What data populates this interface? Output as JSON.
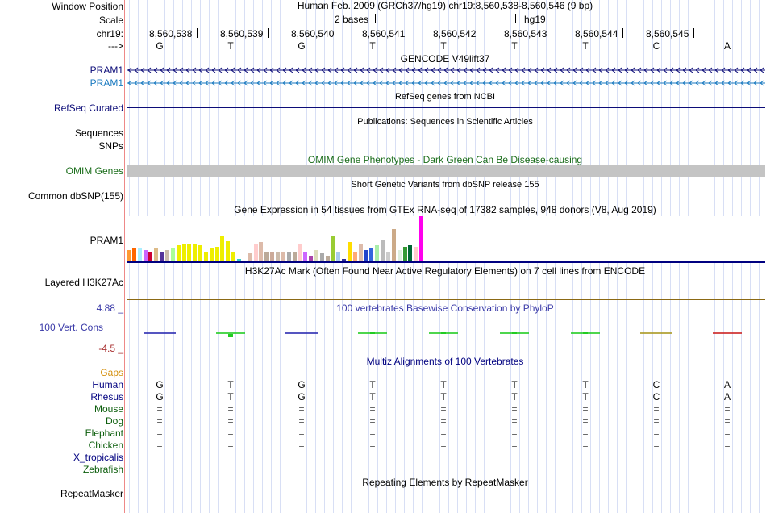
{
  "header": {
    "window_position_label": "Window Position",
    "scale_label": "Scale",
    "chr_label": "chr19:",
    "strand_label": "--->",
    "assembly_title": "Human Feb. 2009 (GRCh37/hg19)   chr19:8,560,538-8,560,546 (9 bp)",
    "scale_text": "2 bases",
    "scale_assembly": "hg19",
    "positions": [
      "8,560,538",
      "8,560,539",
      "8,560,540",
      "8,560,541",
      "8,560,542",
      "8,560,543",
      "8,560,544",
      "8,560,545"
    ],
    "bases": [
      "G",
      "T",
      "G",
      "T",
      "T",
      "T",
      "T",
      "C",
      "A"
    ]
  },
  "tracks": {
    "gencode_title": "GENCODE V49lift37",
    "gencode_gene1": "PRAM1",
    "gencode_gene2": "PRAM1",
    "refseq_label": "RefSeq Curated",
    "refseq_title": "RefSeq genes from NCBI",
    "pubs_title": "Publications: Sequences in Scientific Articles",
    "sequences_label": "Sequences",
    "snps_label": "SNPs",
    "omim_title": "OMIM Gene Phenotypes - Dark Green Can Be Disease-causing",
    "omim_label": "OMIM Genes",
    "dbsnp_title": "Short Genetic Variants from dbSNP release 155",
    "dbsnp_label": "Common dbSNP(155)",
    "gtex_title": "Gene Expression in 54 tissues from GTEx RNA-seq of 17382 samples, 948 donors (V8, Aug 2019)",
    "gtex_label": "PRAM1",
    "h3k27ac_title": "H3K27Ac Mark (Often Found Near Active Regulatory Elements) on 7 cell lines from ENCODE",
    "h3k27ac_label": "Layered H3K27Ac",
    "cons_title": "100 vertebrates Basewise Conservation by PhyloP",
    "cons_max": "4.88 _",
    "cons_min": "-4.5 _",
    "cons_label": "100 Vert. Cons",
    "multiz_title": "Multiz Alignments of 100 Vertebrates",
    "repeat_title": "Repeating Elements by RepeatMasker",
    "repeat_label": "RepeatMasker"
  },
  "alignment": {
    "gaps_label": "Gaps",
    "species": [
      {
        "name": "Human",
        "color": "#000080",
        "row": [
          "G",
          "T",
          "G",
          "T",
          "T",
          "T",
          "T",
          "C",
          "A"
        ]
      },
      {
        "name": "Rhesus",
        "color": "#000080",
        "row": [
          "G",
          "T",
          "G",
          "T",
          "T",
          "T",
          "T",
          "C",
          "A"
        ]
      },
      {
        "name": "Mouse",
        "color": "#0b5d0b",
        "row": [
          "=",
          "=",
          "=",
          "=",
          "=",
          "=",
          "=",
          "=",
          "="
        ]
      },
      {
        "name": "Dog",
        "color": "#0b5d0b",
        "row": [
          "=",
          "=",
          "=",
          "=",
          "=",
          "=",
          "=",
          "=",
          "="
        ]
      },
      {
        "name": "Elephant",
        "color": "#0b5d0b",
        "row": [
          "=",
          "=",
          "=",
          "=",
          "=",
          "=",
          "=",
          "=",
          "="
        ]
      },
      {
        "name": "Chicken",
        "color": "#0b5d0b",
        "row": [
          "=",
          "=",
          "=",
          "=",
          "=",
          "=",
          "=",
          "=",
          "="
        ]
      },
      {
        "name": "X_tropicalis",
        "color": "#000080",
        "row": []
      },
      {
        "name": "Zebrafish",
        "color": "#0b5d0b",
        "row": []
      }
    ]
  },
  "gtex_bars": [
    {
      "v": 0.25,
      "c": "#ff9933"
    },
    {
      "v": 0.28,
      "c": "#ff6600"
    },
    {
      "v": 0.3,
      "c": "#aaeeff"
    },
    {
      "v": 0.25,
      "c": "#cc66ff"
    },
    {
      "v": 0.2,
      "c": "#cc0033"
    },
    {
      "v": 0.3,
      "c": "#ddbb88"
    },
    {
      "v": 0.22,
      "c": "#553399"
    },
    {
      "v": 0.25,
      "c": "#ccbbaa"
    },
    {
      "v": 0.3,
      "c": "#aaff99"
    },
    {
      "v": 0.35,
      "c": "#eeee00"
    },
    {
      "v": 0.38,
      "c": "#eeee00"
    },
    {
      "v": 0.4,
      "c": "#eeee00"
    },
    {
      "v": 0.4,
      "c": "#eeee00"
    },
    {
      "v": 0.35,
      "c": "#eeee00"
    },
    {
      "v": 0.22,
      "c": "#eeee00"
    },
    {
      "v": 0.3,
      "c": "#eeee00"
    },
    {
      "v": 0.32,
      "c": "#eeee00"
    },
    {
      "v": 0.58,
      "c": "#eeee00"
    },
    {
      "v": 0.45,
      "c": "#eeee00"
    },
    {
      "v": 0.2,
      "c": "#eeee00"
    },
    {
      "v": 0.05,
      "c": "#33cccc"
    },
    {
      "v": 0.02,
      "c": "#aaaaaa"
    },
    {
      "v": 0.18,
      "c": "#ddbbaa"
    },
    {
      "v": 0.38,
      "c": "#ffcccc"
    },
    {
      "v": 0.42,
      "c": "#ddbbaa"
    },
    {
      "v": 0.22,
      "c": "#bbaa99"
    },
    {
      "v": 0.22,
      "c": "#ccaa99"
    },
    {
      "v": 0.22,
      "c": "#ccbbaa"
    },
    {
      "v": 0.22,
      "c": "#ddbbaa"
    },
    {
      "v": 0.2,
      "c": "#aaaaaa"
    },
    {
      "v": 0.2,
      "c": "#bbaa99"
    },
    {
      "v": 0.38,
      "c": "#ffcccc"
    },
    {
      "v": 0.2,
      "c": "#cc66ff"
    },
    {
      "v": 0.12,
      "c": "#aa44aa"
    },
    {
      "v": 0.25,
      "c": "#ddddbb"
    },
    {
      "v": 0.18,
      "c": "#aaaaaa"
    },
    {
      "v": 0.12,
      "c": "#bbaa99"
    },
    {
      "v": 0.58,
      "c": "#99cc33"
    },
    {
      "v": 0.22,
      "c": "#aaccee"
    },
    {
      "v": 0.05,
      "c": "#333399"
    },
    {
      "v": 0.42,
      "c": "#ffdd00"
    },
    {
      "v": 0.2,
      "c": "#ffaa77"
    },
    {
      "v": 0.38,
      "c": "#ddbbaa"
    },
    {
      "v": 0.25,
      "c": "#2244cc"
    },
    {
      "v": 0.28,
      "c": "#3366dd"
    },
    {
      "v": 0.35,
      "c": "#aaeeaa"
    },
    {
      "v": 0.48,
      "c": "#bbbbbb"
    },
    {
      "v": 0.22,
      "c": "#cccccc"
    },
    {
      "v": 0.72,
      "c": "#ccaa88"
    },
    {
      "v": 0.25,
      "c": "#ddeedd"
    },
    {
      "v": 0.32,
      "c": "#339933"
    },
    {
      "v": 0.35,
      "c": "#006633"
    },
    {
      "v": 0.32,
      "c": "#ffcccc"
    },
    {
      "v": 1.0,
      "c": "#ff00ee"
    }
  ]
}
